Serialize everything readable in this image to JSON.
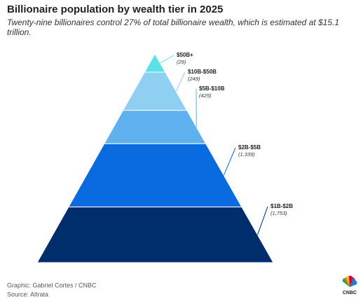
{
  "chart_data": {
    "type": "pyramid",
    "title": "Billionaire population by wealth tier in 2025",
    "subtitle": "Twenty-nine billionaires control 27% of total billionaire wealth, which is estimated at $15.1 trillion.",
    "categories": [
      "$50B+",
      "$10B-$50B",
      "$5B-$10B",
      "$2B-$5B",
      "$1B-$2B"
    ],
    "values": [
      29,
      249,
      425,
      1339,
      1753
    ],
    "value_labels": [
      "(29)",
      "(249)",
      "(425)",
      "(1,339)",
      "(1,753)"
    ],
    "colors": [
      "#5ce1e6",
      "#8fd0f2",
      "#5fb0ef",
      "#0a6ae0",
      "#002d6b"
    ]
  },
  "footer": {
    "credit": "Graphic: Gabriel Cortes / CNBC",
    "source": "Source: Altrata",
    "logo": "CNBC"
  }
}
